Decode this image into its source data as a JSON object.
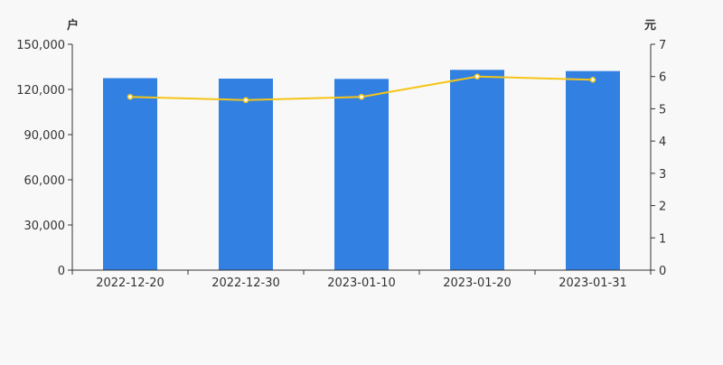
{
  "chart_data": {
    "type": "bar",
    "categories": [
      "2022-12-20",
      "2022-12-30",
      "2023-01-10",
      "2023-01-20",
      "2023-01-31"
    ],
    "series": [
      {
        "type": "bar",
        "axis": "left",
        "values": [
          127500,
          127200,
          127000,
          133000,
          132200
        ],
        "color": "#3281e2"
      },
      {
        "type": "line",
        "axis": "right",
        "values": [
          5.37,
          5.27,
          5.37,
          6.0,
          5.9
        ],
        "color": "#f5c518",
        "marker_fill": "#ffffff"
      }
    ],
    "left_axis": {
      "unit": "户",
      "min": 0,
      "max": 150000,
      "ticks": [
        0,
        30000,
        60000,
        90000,
        120000,
        150000
      ],
      "tick_labels": [
        "0",
        "30,000",
        "60,000",
        "90,000",
        "120,000",
        "150,000"
      ]
    },
    "right_axis": {
      "unit": "元",
      "min": 0,
      "max": 7,
      "ticks": [
        0,
        1,
        2,
        3,
        4,
        5,
        6,
        7
      ],
      "tick_labels": [
        "0",
        "1",
        "2",
        "3",
        "4",
        "5",
        "6",
        "7"
      ]
    },
    "grid": false,
    "legend": "none",
    "colors": {
      "background": "#f8f8f8",
      "axis": "#333333",
      "text": "#333333"
    }
  }
}
